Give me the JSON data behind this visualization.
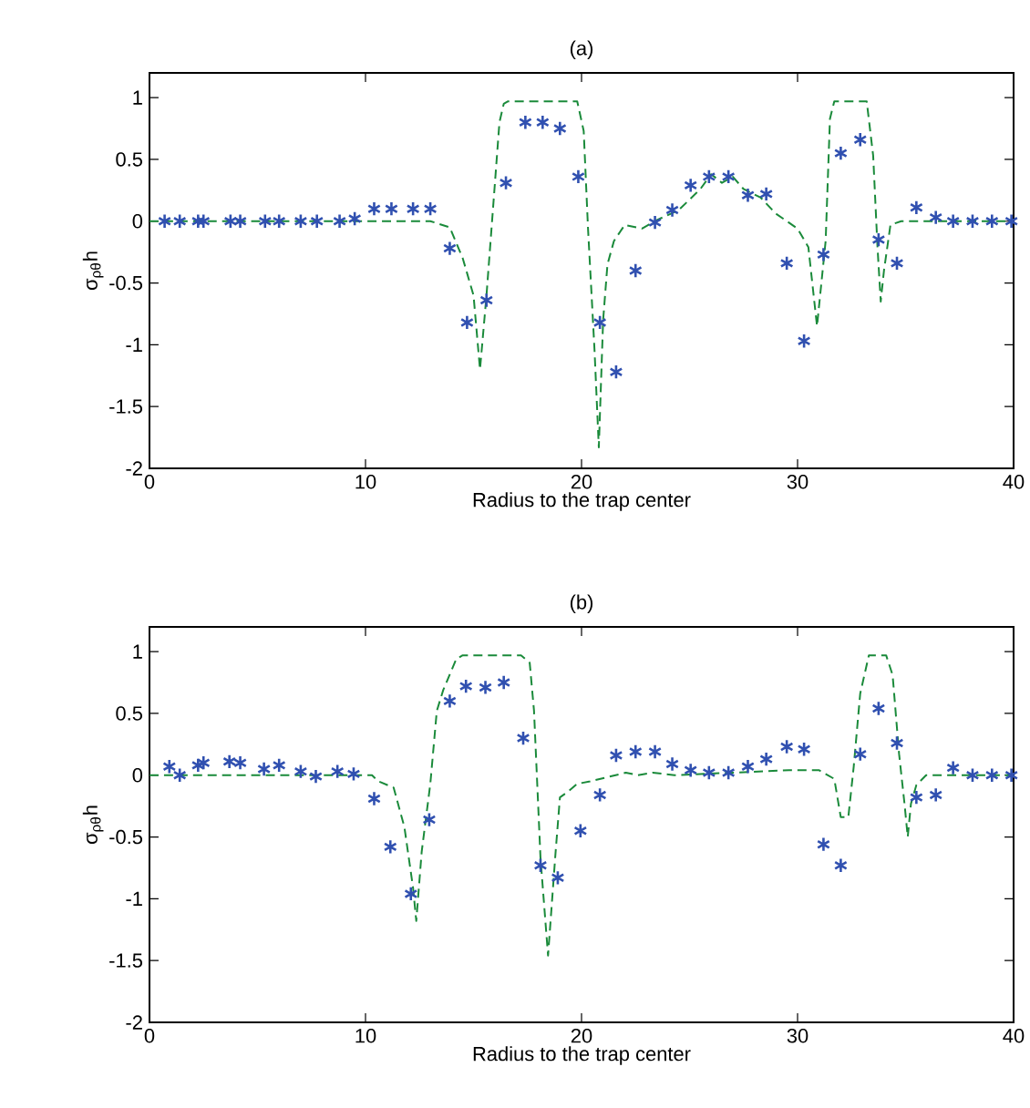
{
  "chart_data": [
    {
      "type": "scatter",
      "title": "(a)",
      "xlabel": "Radius to the trap center",
      "ylabel": "σ$_{ρθ}$h",
      "xlim": [
        0,
        40
      ],
      "ylim": [
        -2,
        1.2
      ],
      "xticks": [
        0,
        10,
        20,
        30,
        40
      ],
      "yticks": [
        -2,
        -1.5,
        -1,
        -0.5,
        0,
        0.5,
        1
      ],
      "series": [
        {
          "marker": "cross",
          "color": "#3050b0",
          "x": [
            0.7,
            1.4,
            2.25,
            2.5,
            3.75,
            4.2,
            5.35,
            6.0,
            7.0,
            7.75,
            8.8,
            9.5,
            10.4,
            11.2,
            12.2,
            13.0,
            13.9,
            14.7,
            15.6,
            16.5,
            17.4,
            18.2,
            19.0,
            19.85,
            20.85,
            21.6,
            22.5,
            23.4,
            24.2,
            25.05,
            25.9,
            26.8,
            27.7,
            28.55,
            29.5,
            30.3,
            31.2,
            32.0,
            32.9,
            33.75,
            34.6,
            35.5,
            36.4,
            37.2,
            38.1,
            39.0,
            39.9
          ],
          "values": [
            0,
            0,
            0,
            0,
            0,
            0,
            0,
            0,
            0,
            0,
            0,
            0.02,
            0.1,
            0.1,
            0.1,
            0.1,
            -0.22,
            -0.82,
            -0.64,
            0.31,
            0.8,
            0.8,
            0.75,
            0.36,
            -0.82,
            -1.22,
            -0.4,
            -0.01,
            0.09,
            0.29,
            0.36,
            0.36,
            0.21,
            0.22,
            -0.34,
            -0.97,
            -0.27,
            0.55,
            0.66,
            -0.15,
            -0.34,
            0.11,
            0.03,
            0,
            0,
            0,
            0
          ]
        },
        {
          "type": "line",
          "line_style": "dashed",
          "color": "#1a8a3a",
          "x": [
            0,
            12,
            13.0,
            13.9,
            14.5,
            15.0,
            15.3,
            15.6,
            16.0,
            16.2,
            16.4,
            16.6,
            19.8,
            20.1,
            20.3,
            20.6,
            20.8,
            21.0,
            21.2,
            21.5,
            22.0,
            22.8,
            23.5,
            24.5,
            25.5,
            26.0,
            26.5,
            27.0,
            27.5,
            28.3,
            29.0,
            30.0,
            30.5,
            30.9,
            31.3,
            31.5,
            31.7,
            33.2,
            33.5,
            33.7,
            33.85,
            34.0,
            34.3,
            34.8,
            40
          ],
          "values": [
            0,
            0,
            0,
            -0.05,
            -0.3,
            -0.6,
            -1.2,
            -0.6,
            0.33,
            0.8,
            0.95,
            0.97,
            0.97,
            0.73,
            -0.06,
            -1.04,
            -1.83,
            -0.8,
            -0.35,
            -0.16,
            -0.03,
            -0.06,
            0.01,
            0.09,
            0.26,
            0.38,
            0.31,
            0.36,
            0.26,
            0.19,
            0.06,
            -0.06,
            -0.21,
            -0.85,
            -0.16,
            0.83,
            0.97,
            0.97,
            0.53,
            -0.21,
            -0.65,
            -0.4,
            -0.03,
            0,
            0
          ]
        }
      ]
    },
    {
      "type": "scatter",
      "title": "(b)",
      "xlabel": "Radius to the trap center",
      "ylabel": "σ$_{ρθ}$h",
      "xlim": [
        0,
        40
      ],
      "ylim": [
        -2,
        1.2
      ],
      "xticks": [
        0,
        10,
        20,
        30,
        40
      ],
      "yticks": [
        -2,
        -1.5,
        -1,
        -0.5,
        0,
        0.5,
        1
      ],
      "series": [
        {
          "marker": "cross",
          "color": "#3050b0",
          "x": [
            0.92,
            1.4,
            2.25,
            2.5,
            3.7,
            4.2,
            5.3,
            6.0,
            7.0,
            7.7,
            8.7,
            9.45,
            10.4,
            11.15,
            12.1,
            12.95,
            13.9,
            14.65,
            15.55,
            16.4,
            17.3,
            18.1,
            18.9,
            19.95,
            20.85,
            21.6,
            22.5,
            23.4,
            24.2,
            25.05,
            25.9,
            26.8,
            27.7,
            28.55,
            29.5,
            30.3,
            31.2,
            32.0,
            32.9,
            33.75,
            34.6,
            35.5,
            36.4,
            37.2,
            38.1,
            39.0,
            39.9
          ],
          "values": [
            0.07,
            0,
            0.08,
            0.1,
            0.11,
            0.1,
            0.05,
            0.08,
            0.03,
            -0.01,
            0.03,
            0.01,
            -0.19,
            -0.58,
            -0.96,
            -0.36,
            0.6,
            0.72,
            0.71,
            0.75,
            0.3,
            -0.73,
            -0.83,
            -0.45,
            -0.16,
            0.16,
            0.19,
            0.19,
            0.09,
            0.04,
            0.02,
            0.02,
            0.07,
            0.13,
            0.23,
            0.21,
            -0.56,
            -0.73,
            0.17,
            0.54,
            0.26,
            -0.18,
            -0.16,
            0.06,
            0,
            0,
            0
          ]
        },
        {
          "type": "line",
          "line_style": "dashed",
          "color": "#1a8a3a",
          "x": [
            0,
            10.3,
            10.6,
            11.3,
            11.8,
            12.2,
            12.35,
            12.6,
            13.0,
            13.3,
            13.6,
            14.2,
            14.5,
            17.2,
            17.6,
            17.8,
            18.1,
            18.45,
            18.8,
            19.0,
            19.4,
            19.8,
            20.4,
            21.1,
            22.05,
            22.6,
            23.3,
            24.3,
            29.6,
            31.0,
            31.7,
            32.0,
            32.35,
            32.6,
            32.9,
            33.3,
            34.1,
            34.4,
            34.7,
            34.95,
            35.1,
            35.25,
            35.5,
            35.95,
            40
          ],
          "values": [
            0,
            0,
            -0.05,
            -0.1,
            -0.42,
            -0.91,
            -1.18,
            -0.62,
            -0.07,
            0.52,
            0.69,
            0.94,
            0.97,
            0.97,
            0.91,
            0.52,
            -0.67,
            -1.46,
            -0.62,
            -0.18,
            -0.13,
            -0.07,
            -0.05,
            -0.02,
            0.02,
            0,
            0.02,
            0,
            0.04,
            0.04,
            -0.03,
            -0.34,
            -0.34,
            0.07,
            0.66,
            0.97,
            0.97,
            0.81,
            0.17,
            -0.23,
            -0.5,
            -0.23,
            -0.08,
            0,
            0
          ]
        }
      ]
    }
  ]
}
